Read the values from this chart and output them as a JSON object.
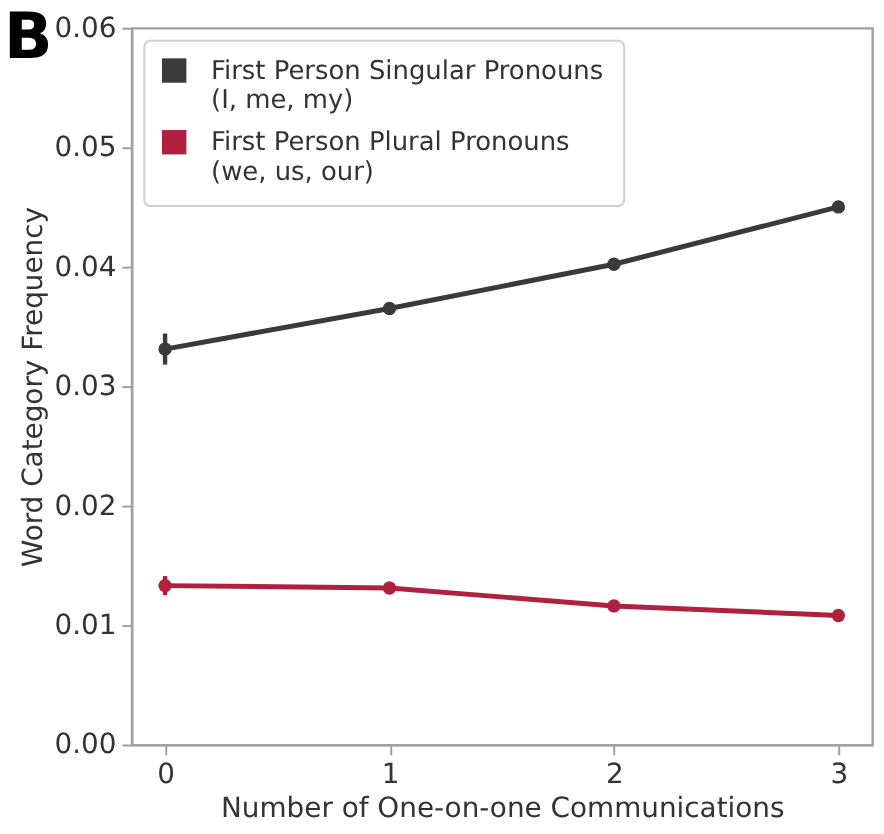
{
  "chart_data": {
    "type": "line",
    "title": "B",
    "xlabel": "Number of One-on-one Communications",
    "ylabel": "Word Category Frequency",
    "x": [
      0,
      1,
      2,
      3
    ],
    "xlim": [
      -0.15,
      3.15
    ],
    "xticks": [
      0,
      1,
      2,
      3
    ],
    "ylim": [
      0,
      0.06
    ],
    "yticks": [
      {
        "value": 0,
        "label": "0.00"
      },
      {
        "value": 0.01,
        "label": "0.01"
      },
      {
        "value": 0.02,
        "label": "0.02"
      },
      {
        "value": 0.03,
        "label": "0.03"
      },
      {
        "value": 0.04,
        "label": "0.04"
      },
      {
        "value": 0.05,
        "label": "0.05"
      },
      {
        "value": 0.06,
        "label": "0.06"
      }
    ],
    "series": [
      {
        "name": "First Person Singular Pronouns\n(I, me, my)",
        "color": "#3a3a3a",
        "values": [
          0.0331,
          0.0365,
          0.0402,
          0.045
        ],
        "errors": [
          0.0013,
          null,
          null,
          null
        ]
      },
      {
        "name": "First Person Plural Pronouns\n(we, us, our)",
        "color": "#b0203f",
        "values": [
          0.0133,
          0.0131,
          0.0116,
          0.0108
        ],
        "errors": [
          0.0008,
          null,
          null,
          null
        ]
      }
    ],
    "legend": "top left",
    "grid": false,
    "marker": "circle",
    "line_style": "solid"
  }
}
